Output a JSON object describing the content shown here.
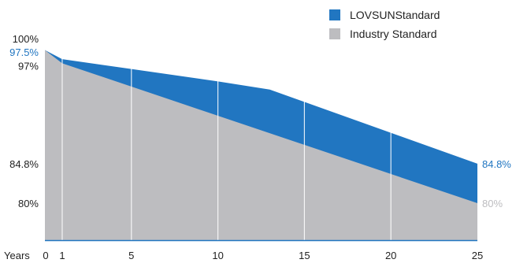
{
  "chart_data": {
    "type": "area",
    "x_axis_title": "Years",
    "x_ticks": [
      0,
      1,
      5,
      10,
      15,
      20,
      25
    ],
    "y_ticks": [
      {
        "value": 100,
        "label": "100%"
      },
      {
        "value": 97,
        "label": "97%"
      },
      {
        "value": 84.8,
        "label": "84.8%"
      },
      {
        "value": 80,
        "label": "80%"
      }
    ],
    "xlim": [
      0,
      25
    ],
    "ylim": [
      75,
      100
    ],
    "grid": "vertical",
    "legend_position": "top-right",
    "series": [
      {
        "name": "LOVSUNStandard",
        "color": "#2176c1",
        "x": [
          0,
          1,
          5,
          10,
          13,
          25
        ],
        "values": [
          98.6,
          97.5,
          96.3,
          94.8,
          93.8,
          84.8
        ],
        "start_label": "97.5%",
        "end_label": "84.8%"
      },
      {
        "name": "Industry Standard",
        "color": "#bdbdc0",
        "x": [
          0,
          1,
          25
        ],
        "values": [
          98.6,
          97,
          80
        ],
        "start_label": "97%",
        "end_label": "80%"
      }
    ]
  }
}
